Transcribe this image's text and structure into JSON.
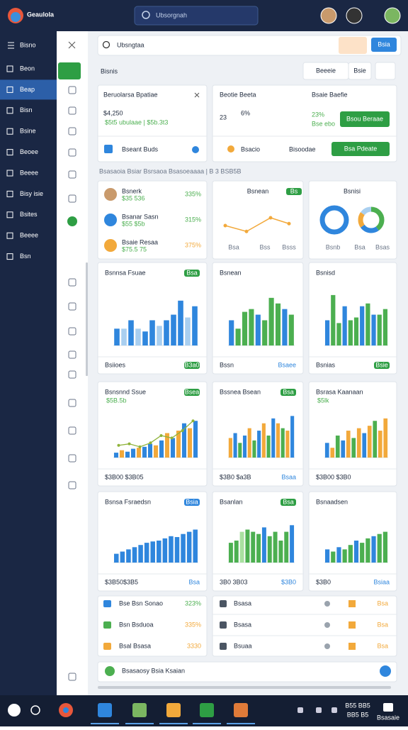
{
  "app": {
    "logo": "Geaulola",
    "search": "Ubsorgnah"
  },
  "sidebar": {
    "title": "Bisno",
    "items": [
      "Beon",
      "Beap",
      "Bisn",
      "Bsine",
      "Beoee",
      "Beeee",
      "Bisy isie",
      "Bsites",
      "Beeee",
      "Bsn"
    ],
    "active": 1
  },
  "search": "Ubsngtaa",
  "search_button": "Bsia",
  "heading": "Bisnis",
  "header_buttons": [
    "Beeeie",
    "Bsie"
  ],
  "summary": [
    {
      "title": "Beruolarsa Bpatiae",
      "value": "$4,250",
      "sub": "$5t5 ubulaae | $5b.3t3",
      "foot": "Bseant Buds"
    },
    {
      "title": "Beotie Beeta",
      "value": "23",
      "value_suffix": "6%",
      "label2": "Bsaie Baefie",
      "change": "23%",
      "change_sub": "Bse ebo",
      "button": "Bsou Beraae",
      "foot": "Bsacio",
      "foot2": "Bisoodae",
      "button2": "Bsa Pdeate"
    }
  ],
  "subtitle": "Bsasaoia Bsiar Bsrsaoa Bsasoeaaaa | B 3 BSB5B",
  "people": {
    "items": [
      {
        "name": "Bsnerk",
        "sub": "$35 536",
        "value": "335%"
      },
      {
        "name": "Bsanar Sasn",
        "sub": "$55 $5b",
        "value": "315%"
      },
      {
        "name": "Bsaie Resaa",
        "sub": "$75.5 75",
        "value": "375%"
      }
    ]
  },
  "trend": {
    "title": "Bsnean",
    "badge": "Bs",
    "values": [
      40,
      25,
      60,
      45
    ],
    "ylim": [
      0,
      100
    ],
    "color": "#f2a93b",
    "foot": [
      "Bsa",
      "Bss",
      "Bsss"
    ]
  },
  "donuts": {
    "title": "Bsnisi",
    "values": [
      40,
      25,
      20,
      15
    ],
    "colors": [
      "#4caf50",
      "#2f86dd",
      "#f2a93b",
      "#a9cff0"
    ],
    "foot": [
      "Bsnb",
      "Bsa",
      "Bsas"
    ]
  },
  "charts": [
    {
      "title": "Bsnnsa Fsuae",
      "badge": "Bsa",
      "ylim": [
        0,
        100
      ],
      "values": [
        30,
        30,
        45,
        30,
        25,
        45,
        35,
        45,
        55,
        80,
        50,
        70
      ],
      "colors": [
        "#2f86dd",
        "#a9cff0",
        "#2f86dd",
        "#a9cff0",
        "#2f86dd",
        "#2f86dd",
        "#a9cff0",
        "#2f86dd",
        "#2f86dd",
        "#2f86dd",
        "#a9cff0",
        "#2f86dd"
      ],
      "foot": "Bsiioes",
      "foot_badge": "B3a0"
    },
    {
      "title": "Bsnean",
      "ylim": [
        0,
        100
      ],
      "values": [
        45,
        30,
        60,
        65,
        55,
        45,
        85,
        75,
        65,
        55
      ],
      "colors": [
        "#2f86dd",
        "#4caf50",
        "#4caf50",
        "#4caf50",
        "#2f86dd",
        "#4caf50",
        "#4caf50",
        "#4caf50",
        "#2f86dd",
        "#4caf50"
      ],
      "foot": "Bssn",
      "foot_right": "Bsaee"
    },
    {
      "title": "Bsnisd",
      "ylim": [
        0,
        100
      ],
      "values": [
        45,
        90,
        40,
        70,
        45,
        50,
        70,
        75,
        55,
        55,
        65
      ],
      "colors": [
        "#2f86dd",
        "#4caf50",
        "#4caf50",
        "#2f86dd",
        "#4caf50",
        "#4caf50",
        "#2f86dd",
        "#4caf50",
        "#2f86dd",
        "#4caf50",
        "#4caf50"
      ],
      "foot": "Bsnias",
      "foot_badge": "Bsie"
    },
    {
      "title": "Bsnsnnd Ssue",
      "badge": "Bsea",
      "sub": "$5B.5b",
      "ylim": [
        0,
        100
      ],
      "values": [
        10,
        15,
        12,
        18,
        20,
        22,
        28,
        25,
        35,
        50,
        40,
        55,
        70,
        60,
        75
      ],
      "colors": [
        "#2f86dd",
        "#f2a93b",
        "#2f86dd",
        "#2f86dd",
        "#f2a93b",
        "#2f86dd",
        "#2f86dd",
        "#f2a93b",
        "#2f86dd",
        "#f2a93b",
        "#2f86dd",
        "#f2a93b",
        "#2f86dd",
        "#f2a93b",
        "#2f86dd"
      ],
      "line": [
        25,
        28,
        22,
        30,
        45,
        40,
        55,
        75
      ],
      "line_color": "#8fb339",
      "foot": "$3B00 $3B05"
    },
    {
      "title": "Bssnea Bsean",
      "badge": "Bsa",
      "ylim": [
        0,
        100
      ],
      "values": [
        40,
        50,
        30,
        45,
        60,
        35,
        55,
        70,
        45,
        80,
        70,
        60,
        55,
        85
      ],
      "colors": [
        "#f2a93b",
        "#2f86dd",
        "#4caf50",
        "#2f86dd",
        "#f2a93b",
        "#4caf50",
        "#2f86dd",
        "#f2a93b",
        "#4caf50",
        "#2f86dd",
        "#f2a93b",
        "#4caf50",
        "#f2a93b",
        "#2f86dd"
      ],
      "foot": "$3B0 $a3B",
      "foot_right": "Bsaa"
    },
    {
      "title": "Bsrasa Kaanaan",
      "sub": "$5lk",
      "ylim": [
        0,
        100
      ],
      "values": [
        30,
        20,
        45,
        35,
        55,
        40,
        60,
        50,
        65,
        75,
        55,
        80
      ],
      "colors": [
        "#2f86dd",
        "#f2a93b",
        "#4caf50",
        "#2f86dd",
        "#f2a93b",
        "#4caf50",
        "#f2a93b",
        "#2f86dd",
        "#f2a93b",
        "#4caf50",
        "#f2a93b",
        "#f2a93b"
      ],
      "foot": "$3B00 $3B0"
    },
    {
      "title": "Bsnsa Fsraedsn",
      "badge": "Bsia",
      "ylim": [
        0,
        100
      ],
      "values": [
        20,
        25,
        30,
        35,
        40,
        45,
        48,
        50,
        55,
        60,
        58,
        65,
        70,
        75
      ],
      "colors": [
        "#2f86dd",
        "#2f86dd",
        "#2f86dd",
        "#2f86dd",
        "#2f86dd",
        "#2f86dd",
        "#2f86dd",
        "#2f86dd",
        "#2f86dd",
        "#2f86dd",
        "#2f86dd",
        "#2f86dd",
        "#2f86dd",
        "#2f86dd"
      ],
      "foot": "$3B50$3B5",
      "foot_right": "Bsa"
    },
    {
      "title": "Bsanlan",
      "badge": "Bsa",
      "ylim": [
        0,
        100
      ],
      "values": [
        45,
        50,
        70,
        75,
        70,
        65,
        80,
        60,
        70,
        50,
        70,
        85
      ],
      "colors": [
        "#4caf50",
        "#4caf50",
        "#a9e0a0",
        "#4caf50",
        "#4caf50",
        "#4caf50",
        "#2f86dd",
        "#4caf50",
        "#4caf50",
        "#4caf50",
        "#4caf50",
        "#2f86dd"
      ],
      "foot": "3B0 3B03",
      "foot_right": "$3B0"
    },
    {
      "title": "Bsnaadsen",
      "ylim": [
        0,
        100
      ],
      "values": [
        30,
        25,
        35,
        30,
        40,
        50,
        45,
        55,
        60,
        65,
        70
      ],
      "colors": [
        "#2f86dd",
        "#4caf50",
        "#2f86dd",
        "#4caf50",
        "#4caf50",
        "#2f86dd",
        "#4caf50",
        "#4caf50",
        "#2f86dd",
        "#4caf50",
        "#4caf50"
      ],
      "foot": "$3B0",
      "foot_right": "Bsiaa"
    }
  ],
  "list_left": [
    {
      "label": "Bse Bsn Sonao",
      "value": "323%"
    },
    {
      "label": "Bsn Bsduoa",
      "value": "335%"
    },
    {
      "label": "Bsal Bsasa",
      "value": "3330"
    }
  ],
  "list_right": [
    {
      "label": "Bsasa",
      "value": "Bsa"
    },
    {
      "label": "Bsasa",
      "value": "Bsa"
    },
    {
      "label": "Bsuaa",
      "value": "Bsa"
    }
  ],
  "footer": "Bsasaosy Bsia Ksaian",
  "taskbar": {
    "time": "B55 BB5",
    "date": "BB5 B5",
    "label": "Bsasaie"
  }
}
